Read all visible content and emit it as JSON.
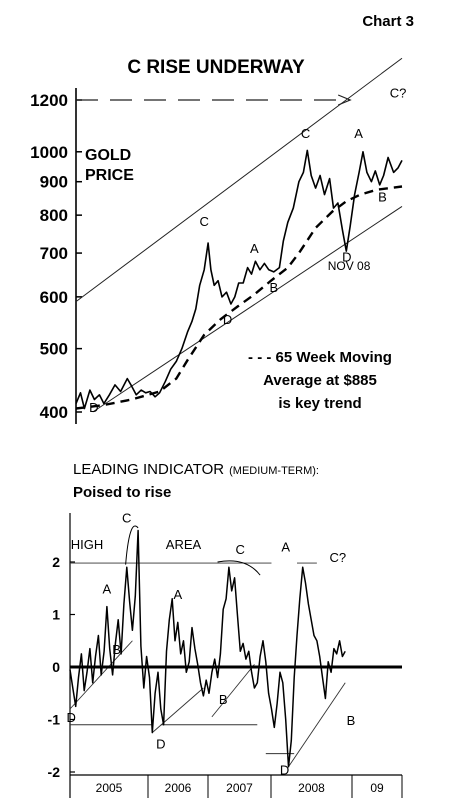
{
  "page": {
    "chart_number": "Chart 3"
  },
  "chart_data": [
    {
      "type": "line",
      "title": "C RISE UNDERWAY",
      "series_label": "GOLD",
      "series_label_2": "PRICE",
      "scale": "log",
      "yticks": [
        "1200",
        "1000",
        "900",
        "800",
        "700",
        "600",
        "500",
        "400"
      ],
      "ylim": [
        390,
        1230
      ],
      "x_range": [
        2004.0,
        2009.85
      ],
      "series": [
        {
          "role": "price",
          "points": [
            [
              2004.0,
              412
            ],
            [
              2004.08,
              428
            ],
            [
              2004.15,
              405
            ],
            [
              2004.25,
              432
            ],
            [
              2004.33,
              418
            ],
            [
              2004.42,
              425
            ],
            [
              2004.5,
              412
            ],
            [
              2004.6,
              425
            ],
            [
              2004.7,
              440
            ],
            [
              2004.8,
              430
            ],
            [
              2004.92,
              450
            ],
            [
              2005.0,
              438
            ],
            [
              2005.08,
              425
            ],
            [
              2005.17,
              432
            ],
            [
              2005.25,
              428
            ],
            [
              2005.33,
              430
            ],
            [
              2005.42,
              422
            ],
            [
              2005.5,
              428
            ],
            [
              2005.6,
              445
            ],
            [
              2005.7,
              465
            ],
            [
              2005.8,
              478
            ],
            [
              2005.9,
              500
            ],
            [
              2006.0,
              530
            ],
            [
              2006.08,
              550
            ],
            [
              2006.15,
              575
            ],
            [
              2006.22,
              625
            ],
            [
              2006.3,
              660
            ],
            [
              2006.37,
              725
            ],
            [
              2006.42,
              660
            ],
            [
              2006.48,
              625
            ],
            [
              2006.55,
              635
            ],
            [
              2006.62,
              600
            ],
            [
              2006.7,
              610
            ],
            [
              2006.78,
              585
            ],
            [
              2006.85,
              600
            ],
            [
              2006.92,
              630
            ],
            [
              2007.0,
              630
            ],
            [
              2007.08,
              665
            ],
            [
              2007.15,
              650
            ],
            [
              2007.22,
              680
            ],
            [
              2007.3,
              660
            ],
            [
              2007.38,
              675
            ],
            [
              2007.46,
              660
            ],
            [
              2007.55,
              655
            ],
            [
              2007.65,
              665
            ],
            [
              2007.72,
              730
            ],
            [
              2007.8,
              780
            ],
            [
              2007.9,
              820
            ],
            [
              2008.0,
              900
            ],
            [
              2008.08,
              930
            ],
            [
              2008.15,
              1005
            ],
            [
              2008.22,
              920
            ],
            [
              2008.3,
              880
            ],
            [
              2008.38,
              920
            ],
            [
              2008.46,
              860
            ],
            [
              2008.55,
              910
            ],
            [
              2008.62,
              820
            ],
            [
              2008.7,
              835
            ],
            [
              2008.78,
              760
            ],
            [
              2008.85,
              705
            ],
            [
              2008.92,
              770
            ],
            [
              2009.0,
              860
            ],
            [
              2009.08,
              930
            ],
            [
              2009.15,
              1000
            ],
            [
              2009.22,
              930
            ],
            [
              2009.3,
              900
            ],
            [
              2009.37,
              935
            ],
            [
              2009.45,
              890
            ],
            [
              2009.52,
              920
            ],
            [
              2009.6,
              980
            ],
            [
              2009.7,
              930
            ],
            [
              2009.78,
              945
            ],
            [
              2009.85,
              970
            ]
          ]
        },
        {
          "role": "moving-average",
          "points": [
            [
              2004.0,
              405
            ],
            [
              2004.5,
              410
            ],
            [
              2005.0,
              418
            ],
            [
              2005.5,
              430
            ],
            [
              2005.8,
              450
            ],
            [
              2006.0,
              480
            ],
            [
              2006.3,
              525
            ],
            [
              2006.6,
              555
            ],
            [
              2006.9,
              580
            ],
            [
              2007.2,
              605
            ],
            [
              2007.5,
              635
            ],
            [
              2007.8,
              665
            ],
            [
              2008.0,
              700
            ],
            [
              2008.3,
              765
            ],
            [
              2008.6,
              810
            ],
            [
              2008.85,
              840
            ],
            [
              2009.1,
              860
            ],
            [
              2009.4,
              875
            ],
            [
              2009.85,
              885
            ]
          ]
        }
      ],
      "channel": {
        "upper": [
          [
            2004.0,
            590
          ],
          [
            2009.85,
            1390
          ]
        ],
        "lower": [
          [
            2004.3,
            400
          ],
          [
            2009.85,
            825
          ]
        ]
      },
      "target_line": {
        "y": 1200,
        "x_from": 2004.0,
        "x_to": 2008.92
      },
      "labels": [
        {
          "text": "C",
          "x": 2006.3,
          "y": 770
        },
        {
          "text": "A",
          "x": 2007.2,
          "y": 700
        },
        {
          "text": "B",
          "x": 2007.55,
          "y": 610
        },
        {
          "text": "D",
          "x": 2006.72,
          "y": 545
        },
        {
          "text": "D",
          "x": 2004.32,
          "y": 400
        },
        {
          "text": "C",
          "x": 2008.12,
          "y": 1050
        },
        {
          "text": "A",
          "x": 2009.07,
          "y": 1050
        },
        {
          "text": "B",
          "x": 2009.5,
          "y": 840
        },
        {
          "text": "D",
          "x": 2008.86,
          "y": 680
        },
        {
          "text": "NOV 08",
          "x": 2008.9,
          "y": 660
        },
        {
          "text": "C?",
          "x": 2009.78,
          "y": 1210
        }
      ],
      "annotation": {
        "line1": "- - - 65 Week Moving",
        "line2": "Average at $885",
        "line3": "is key trend"
      }
    },
    {
      "type": "line",
      "title": "LEADING INDICATOR",
      "title_suffix": "(MEDIUM-TERM):",
      "subtitle": "Poised to rise",
      "ylim": [
        -2,
        2.9
      ],
      "yticks": [
        {
          "value": 2,
          "label": "2"
        },
        {
          "value": 1,
          "label": "1"
        },
        {
          "value": 0,
          "label": "0"
        },
        {
          "value": -1,
          "label": "-1"
        },
        {
          "value": -2,
          "label": "-2"
        }
      ],
      "x_range": [
        2004.0,
        2009.85
      ],
      "x_categories": [
        "2005",
        "2006",
        "2007",
        "2008",
        "09"
      ],
      "series": [
        {
          "role": "indicator",
          "points": [
            [
              2004.0,
              -0.05
            ],
            [
              2004.05,
              -0.4
            ],
            [
              2004.1,
              -0.75
            ],
            [
              2004.15,
              -0.2
            ],
            [
              2004.2,
              0.25
            ],
            [
              2004.25,
              -0.45
            ],
            [
              2004.3,
              -0.1
            ],
            [
              2004.35,
              0.35
            ],
            [
              2004.4,
              -0.3
            ],
            [
              2004.45,
              0.2
            ],
            [
              2004.5,
              0.6
            ],
            [
              2004.55,
              -0.15
            ],
            [
              2004.6,
              0.3
            ],
            [
              2004.65,
              1.15
            ],
            [
              2004.7,
              0.35
            ],
            [
              2004.75,
              -0.15
            ],
            [
              2004.8,
              0.45
            ],
            [
              2004.85,
              0.9
            ],
            [
              2004.9,
              0.25
            ],
            [
              2004.95,
              1.2
            ],
            [
              2005.0,
              1.9
            ],
            [
              2005.05,
              1.25
            ],
            [
              2005.1,
              0.7
            ],
            [
              2005.15,
              1.35
            ],
            [
              2005.2,
              2.6
            ],
            [
              2005.25,
              0.4
            ],
            [
              2005.3,
              -0.4
            ],
            [
              2005.35,
              0.2
            ],
            [
              2005.4,
              -0.2
            ],
            [
              2005.45,
              -1.25
            ],
            [
              2005.5,
              -0.5
            ],
            [
              2005.55,
              -0.1
            ],
            [
              2005.6,
              -0.8
            ],
            [
              2005.65,
              -1.1
            ],
            [
              2005.7,
              0.3
            ],
            [
              2005.75,
              0.9
            ],
            [
              2005.8,
              1.3
            ],
            [
              2005.85,
              0.5
            ],
            [
              2005.9,
              0.85
            ],
            [
              2005.95,
              0.25
            ],
            [
              2006.0,
              0.5
            ],
            [
              2006.05,
              -0.1
            ],
            [
              2006.1,
              0.1
            ],
            [
              2006.15,
              0.75
            ],
            [
              2006.2,
              0.35
            ],
            [
              2006.25,
              0.05
            ],
            [
              2006.3,
              -0.3
            ],
            [
              2006.35,
              -0.55
            ],
            [
              2006.4,
              -0.25
            ],
            [
              2006.45,
              -0.5
            ],
            [
              2006.5,
              -0.1
            ],
            [
              2006.55,
              0.15
            ],
            [
              2006.6,
              -0.2
            ],
            [
              2006.65,
              0.25
            ],
            [
              2006.7,
              1.1
            ],
            [
              2006.75,
              1.3
            ],
            [
              2006.8,
              1.9
            ],
            [
              2006.85,
              1.45
            ],
            [
              2006.9,
              1.7
            ],
            [
              2006.95,
              1.0
            ],
            [
              2007.0,
              0.3
            ],
            [
              2007.05,
              0.45
            ],
            [
              2007.1,
              0.15
            ],
            [
              2007.15,
              0.3
            ],
            [
              2007.2,
              -0.1
            ],
            [
              2007.25,
              -0.4
            ],
            [
              2007.3,
              -0.3
            ],
            [
              2007.35,
              0.2
            ],
            [
              2007.4,
              0.5
            ],
            [
              2007.45,
              0.1
            ],
            [
              2007.5,
              -0.5
            ],
            [
              2007.55,
              -0.8
            ],
            [
              2007.6,
              -1.15
            ],
            [
              2007.65,
              -0.7
            ],
            [
              2007.7,
              -0.1
            ],
            [
              2007.75,
              -0.3
            ],
            [
              2007.8,
              -1.0
            ],
            [
              2007.85,
              -1.9
            ],
            [
              2007.9,
              -1.4
            ],
            [
              2007.95,
              -0.2
            ],
            [
              2008.0,
              0.6
            ],
            [
              2008.05,
              1.3
            ],
            [
              2008.1,
              1.9
            ],
            [
              2008.15,
              1.6
            ],
            [
              2008.2,
              1.2
            ],
            [
              2008.25,
              0.9
            ],
            [
              2008.3,
              0.6
            ],
            [
              2008.35,
              0.5
            ],
            [
              2008.4,
              0.2
            ],
            [
              2008.45,
              -0.2
            ],
            [
              2008.5,
              -0.6
            ],
            [
              2008.55,
              0.1
            ],
            [
              2008.6,
              -0.1
            ],
            [
              2008.65,
              0.35
            ],
            [
              2008.7,
              0.25
            ],
            [
              2008.75,
              0.5
            ],
            [
              2008.8,
              0.2
            ],
            [
              2008.85,
              0.3
            ]
          ]
        }
      ],
      "trend_lines": [
        [
          [
            2004.0,
            -0.8
          ],
          [
            2005.1,
            0.5
          ]
        ],
        [
          [
            2005.45,
            -1.25
          ],
          [
            2006.35,
            -0.4
          ]
        ],
        [
          [
            2006.5,
            -0.95
          ],
          [
            2007.25,
            0.05
          ]
        ],
        [
          [
            2007.85,
            -1.9
          ],
          [
            2008.85,
            -0.3
          ]
        ],
        [
          [
            2004.0,
            -1.1
          ],
          [
            2005.45,
            -1.1
          ]
        ],
        [
          [
            2005.6,
            -1.1
          ],
          [
            2007.3,
            -1.1
          ]
        ],
        [
          [
            2007.45,
            -1.65
          ],
          [
            2007.95,
            -1.65
          ]
        ],
        [
          [
            2004.0,
            1.98
          ],
          [
            2007.55,
            1.98
          ]
        ],
        [
          [
            2008.0,
            1.98
          ],
          [
            2008.35,
            1.98
          ]
        ]
      ],
      "labels": [
        {
          "text": "HIGH",
          "x": 2004.3,
          "y": 2.25
        },
        {
          "text": "AREA",
          "x": 2006.0,
          "y": 2.25
        },
        {
          "text": "C",
          "x": 2005.0,
          "y": 2.75
        },
        {
          "text": "C",
          "x": 2007.0,
          "y": 2.15
        },
        {
          "text": "C?",
          "x": 2008.72,
          "y": 2.0
        },
        {
          "text": "A",
          "x": 2004.65,
          "y": 1.4
        },
        {
          "text": "A",
          "x": 2005.9,
          "y": 1.3
        },
        {
          "text": "A",
          "x": 2007.8,
          "y": 2.2
        },
        {
          "text": "B",
          "x": 2004.82,
          "y": 0.25
        },
        {
          "text": "B",
          "x": 2006.7,
          "y": -0.7
        },
        {
          "text": "B",
          "x": 2008.95,
          "y": -1.1
        },
        {
          "text": "D",
          "x": 2004.02,
          "y": -1.05
        },
        {
          "text": "D",
          "x": 2005.6,
          "y": -1.55
        },
        {
          "text": "D",
          "x": 2007.78,
          "y": -2.05
        }
      ]
    }
  ]
}
